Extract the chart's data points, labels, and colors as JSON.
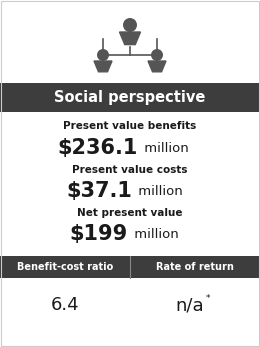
{
  "title": "Social perspective",
  "title_bg": "#3d3d3d",
  "title_color": "#ffffff",
  "label1": "Present value benefits",
  "value1_big": "$236.1",
  "value1_small": " million",
  "label2": "Present value costs",
  "value2_big": "$37.1",
  "value2_small": " million",
  "label3": "Net present value",
  "value3_big": "$199",
  "value3_small": " million",
  "bottom_bg": "#3d3d3d",
  "bottom_label1": "Benefit-cost ratio",
  "bottom_label2": "Rate of return",
  "bottom_value1": "6.4",
  "bottom_value2": "n/a",
  "bottom_value2_super": "*",
  "bg_color": "#ffffff",
  "label_color": "#1a1a1a",
  "value_color": "#1a1a1a",
  "icon_color": "#555555",
  "border_color": "#cccccc"
}
